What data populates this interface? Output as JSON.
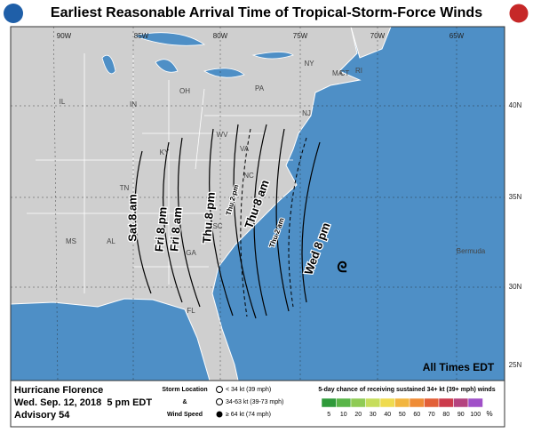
{
  "header": {
    "title": "Earliest Reasonable Arrival Time of Tropical-Storm-Force Winds"
  },
  "map": {
    "longitudes": [
      "90W",
      "85W",
      "80W",
      "75W",
      "70W",
      "65W"
    ],
    "latitudes": [
      "40N",
      "35N",
      "30N",
      "25N"
    ],
    "places": [
      "IL",
      "IN",
      "OH",
      "PA",
      "NY",
      "MA",
      "CT",
      "RI",
      "NJ",
      "KY",
      "WV",
      "VA",
      "NC",
      "TN",
      "SC",
      "GA",
      "AL",
      "MS",
      "FL",
      "Bermuda"
    ],
    "contours": [
      "Sat 8 am",
      "Fri 8 pm",
      "Fri 8 am",
      "Thu 8 pm",
      "Thu 2 pm",
      "Thu 8 am",
      "Thu 2 am",
      "Wed 8 pm"
    ],
    "note": "All Times EDT"
  },
  "footer": {
    "storm": "Hurricane Florence",
    "date": "Wed. Sep. 12, 2018  5 pm EDT",
    "advisory": "Advisory 54",
    "legend_title": [
      "Storm Location",
      "&",
      "Wind Speed"
    ],
    "wind_classes": [
      "< 34 kt (39 mph)",
      "34-63 kt (39-73 mph)",
      "≥ 64 kt (74 mph)"
    ],
    "scale_title": "5-day chance of receiving sustained 34+ kt (39+ mph) winds",
    "scale": [
      5,
      10,
      20,
      30,
      40,
      50,
      60,
      70,
      80,
      90,
      100
    ],
    "scale_unit": "%",
    "scale_colors": [
      "#2f9a3a",
      "#59b548",
      "#8fcb55",
      "#c6dd5c",
      "#efdb4f",
      "#f2b53e",
      "#ef8c36",
      "#e25f37",
      "#cc3b4c",
      "#b4437f",
      "#a050c8"
    ]
  }
}
